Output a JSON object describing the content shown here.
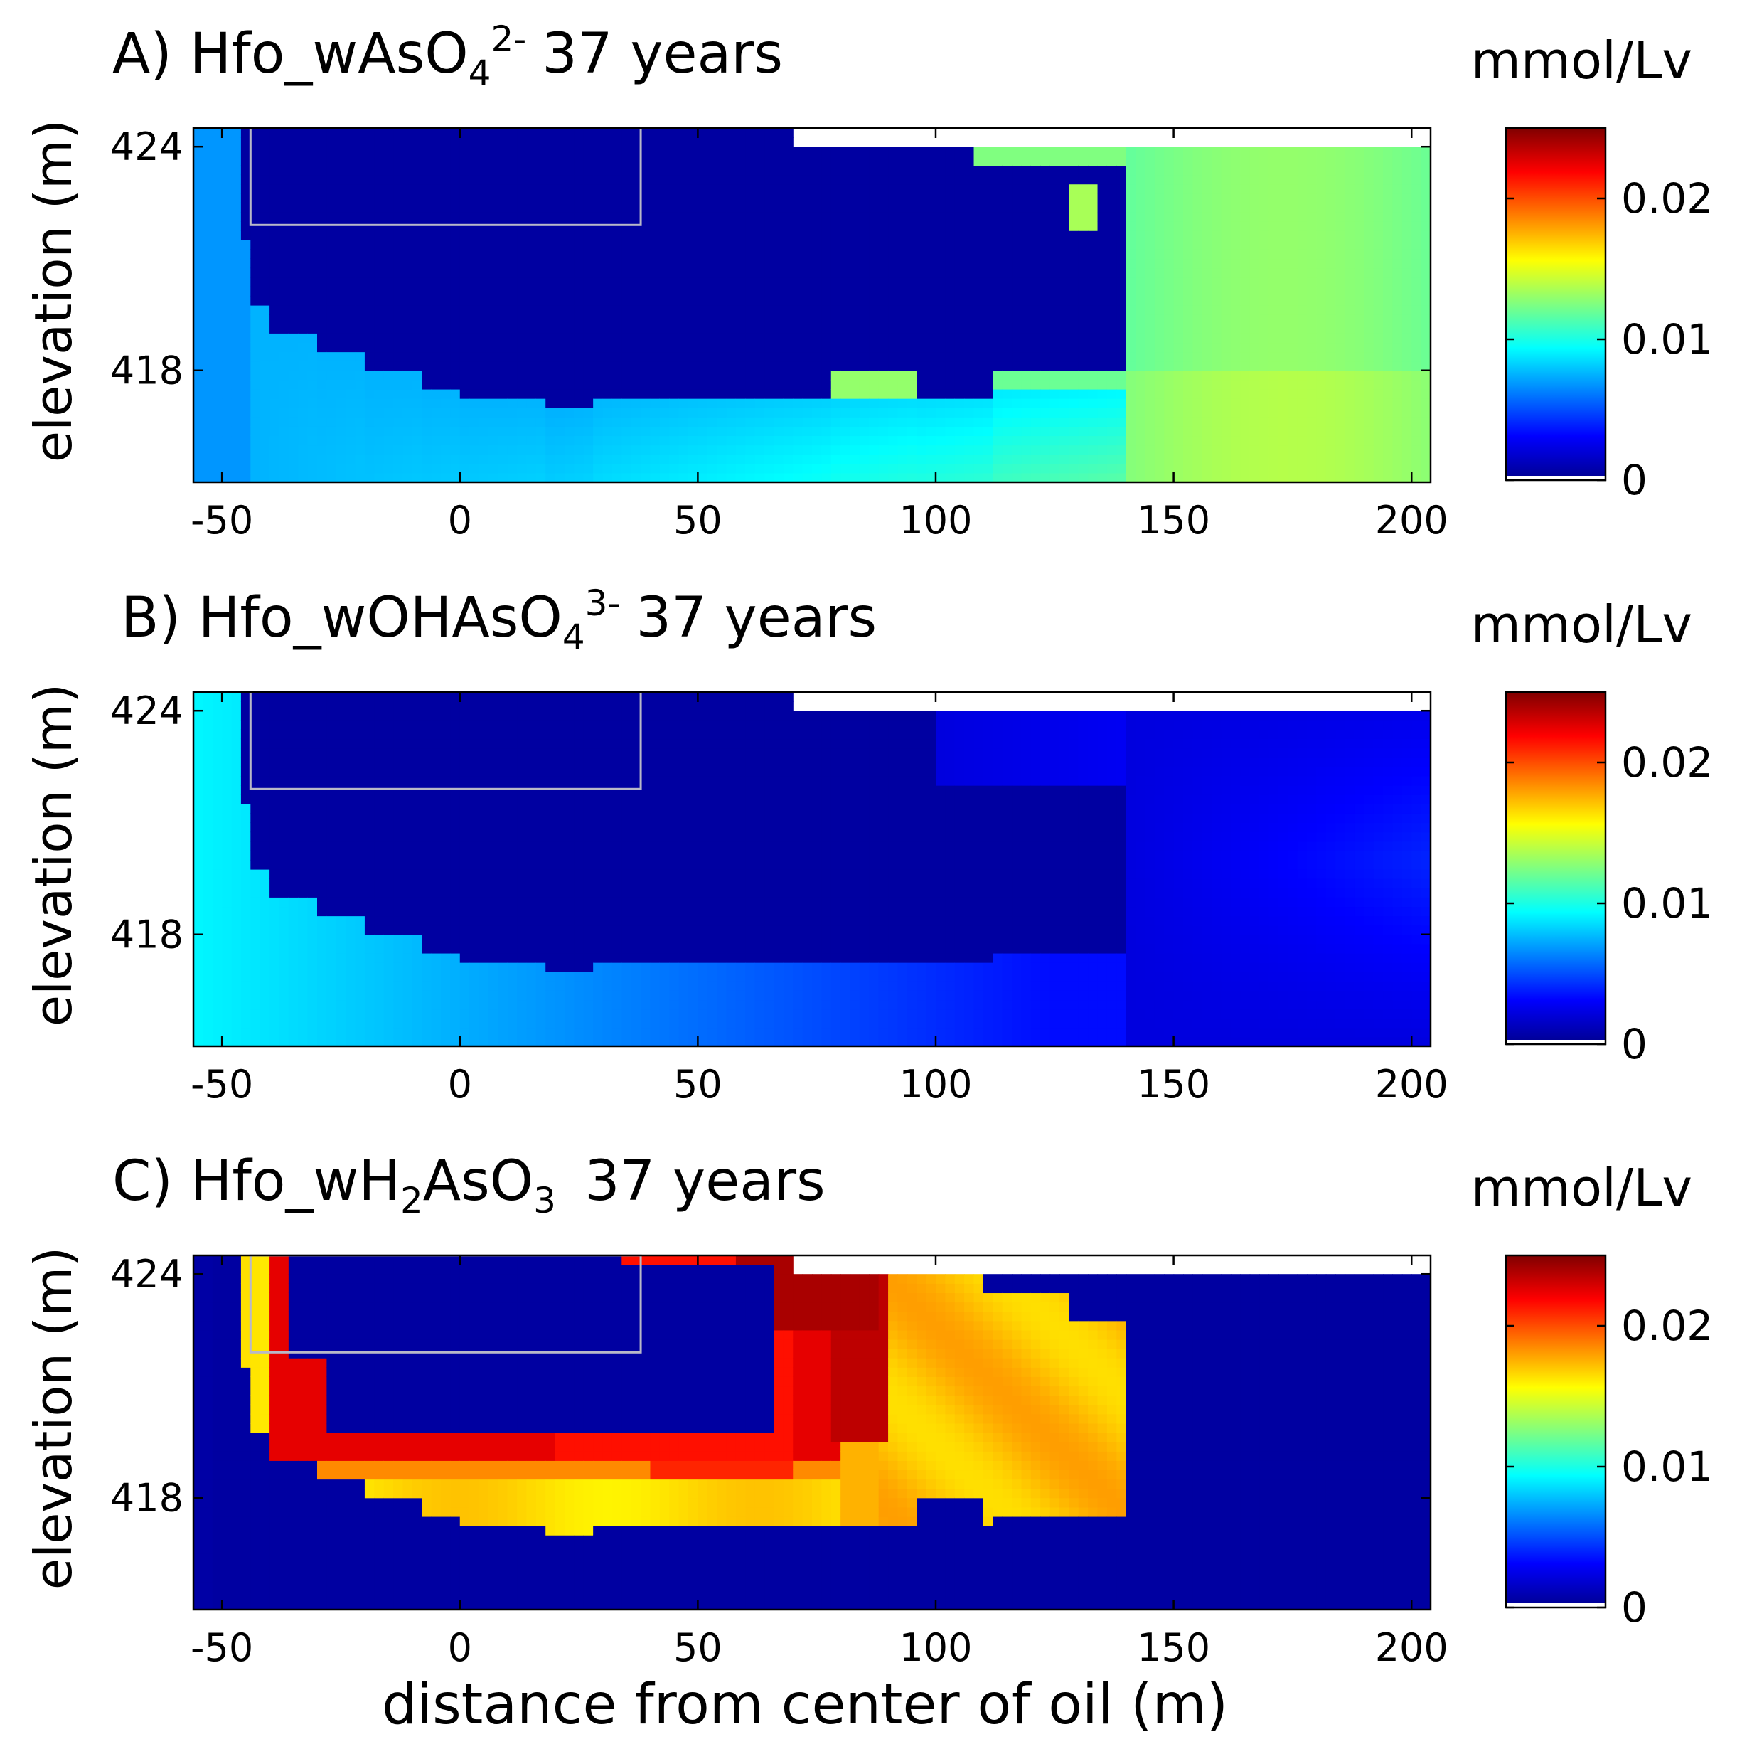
{
  "chart_data": [
    {
      "type": "heatmap",
      "panel_label": "A)",
      "title_prefix": "Hfo_wAsO",
      "title_sub": "4",
      "title_sup": "2-",
      "title_suffix": "37 years",
      "colorbar_label": "mmol/Lv",
      "ylabel": "elevation (m)",
      "xlabel": "",
      "xlim": [
        -56,
        204
      ],
      "ylim": [
        415,
        424.5
      ],
      "xticks": [
        -50,
        0,
        50,
        100,
        150,
        200
      ],
      "yticks": [
        424,
        418
      ],
      "cbar_ticks": [
        0,
        0.01,
        0.02
      ],
      "cbar_tick_labels": [
        "0",
        "0.01",
        "0.02"
      ],
      "cbar_range": [
        0,
        0.025
      ],
      "oil_box": {
        "x": [
          -44,
          38
        ],
        "y": [
          421.9,
          424.5
        ]
      },
      "model_fn": "As5a"
    },
    {
      "type": "heatmap",
      "panel_label": "B)",
      "title_prefix": "Hfo_wOHAsO",
      "title_sub": "4",
      "title_sup": "3-",
      "title_suffix": "37 years",
      "colorbar_label": "mmol/Lv",
      "ylabel": "elevation (m)",
      "xlabel": "",
      "xlim": [
        -56,
        204
      ],
      "ylim": [
        415,
        424.5
      ],
      "xticks": [
        -50,
        0,
        50,
        100,
        150,
        200
      ],
      "yticks": [
        424,
        418
      ],
      "cbar_ticks": [
        0,
        0.01,
        0.02
      ],
      "cbar_tick_labels": [
        "0",
        "0.01",
        "0.02"
      ],
      "cbar_range": [
        0,
        0.025
      ],
      "oil_box": {
        "x": [
          -44,
          38
        ],
        "y": [
          421.9,
          424.5
        ]
      },
      "model_fn": "As5b"
    },
    {
      "type": "heatmap",
      "panel_label": "C)",
      "title_prefix": "Hfo_wH",
      "title_sub": "2",
      "title_mid": "AsO",
      "title_sub2": "3",
      "title_suffix": "37 years",
      "colorbar_label": "mmol/Lv",
      "ylabel": "elevation (m)",
      "xlabel": "distance from center of oil (m)",
      "xlim": [
        -56,
        204
      ],
      "ylim": [
        415,
        424.5
      ],
      "xticks": [
        -50,
        0,
        50,
        100,
        150,
        200
      ],
      "yticks": [
        424,
        418
      ],
      "cbar_ticks": [
        0,
        0.01,
        0.02
      ],
      "cbar_tick_labels": [
        "0",
        "0.01",
        "0.02"
      ],
      "cbar_range": [
        0,
        0.025
      ],
      "oil_box": {
        "x": [
          -44,
          38
        ],
        "y": [
          421.9,
          424.5
        ]
      },
      "model_fn": "As3"
    }
  ]
}
